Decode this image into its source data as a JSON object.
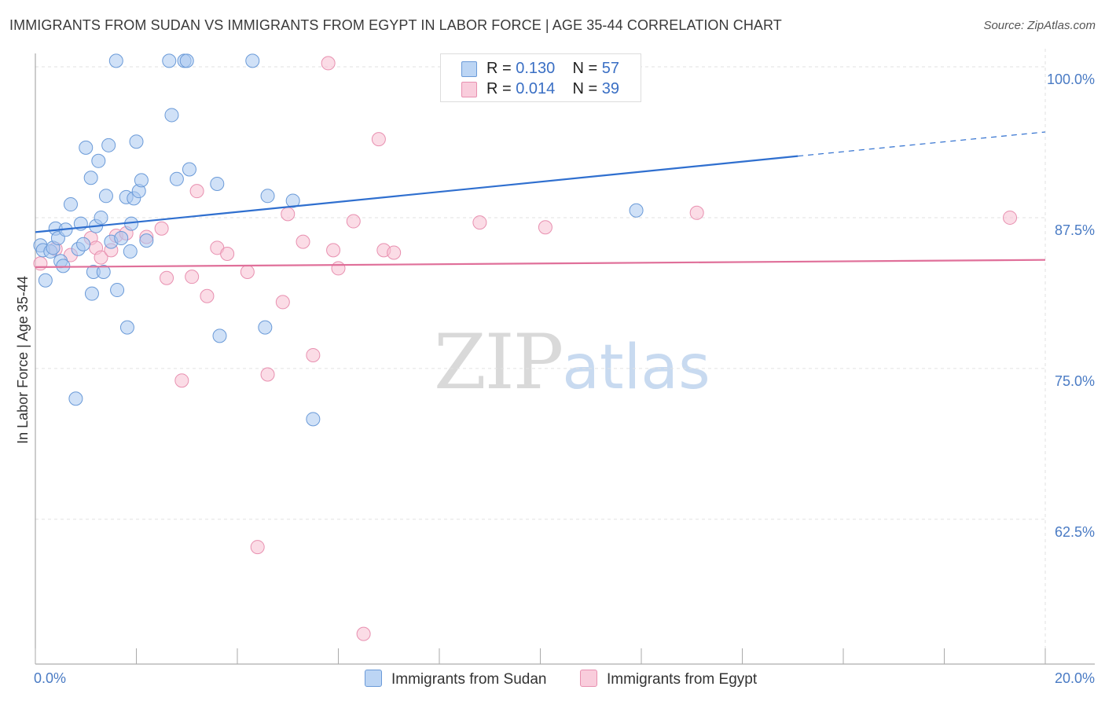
{
  "title": "IMMIGRANTS FROM SUDAN VS IMMIGRANTS FROM EGYPT IN LABOR FORCE | AGE 35-44 CORRELATION CHART",
  "source": "Source: ZipAtlas.com",
  "watermark": {
    "zip": "ZIP",
    "atlas": "atlas"
  },
  "legend": {
    "sudan": {
      "r_label": "R = ",
      "r_value": "0.130",
      "n_label": "N = ",
      "n_value": "57"
    },
    "egypt": {
      "r_label": "R = ",
      "r_value": "0.014",
      "n_label": "N = ",
      "n_value": "39"
    }
  },
  "colors": {
    "sudan_fill": "#a9c8f0",
    "sudan_stroke": "#6a9ad8",
    "sudan_line": "#2f6fcf",
    "egypt_fill": "#f7bfd2",
    "egypt_stroke": "#e890b0",
    "egypt_line": "#e0709a",
    "tick_text": "#4a7bc4",
    "grid": "#e2e2e2"
  },
  "chart_data": {
    "type": "scatter",
    "title": "IMMIGRANTS FROM SUDAN VS IMMIGRANTS FROM EGYPT IN LABOR FORCE | AGE 35-44 CORRELATION CHART",
    "xlabel": "",
    "ylabel": "In Labor Force | Age 35-44",
    "xlim": [
      0,
      20
    ],
    "ylim": [
      50.5,
      101.5
    ],
    "x_tick_labels": [
      {
        "value": 0,
        "label": "0.0%"
      },
      {
        "value": 20,
        "label": "20.0%"
      }
    ],
    "x_minor_ticks": [
      0,
      2,
      4,
      6,
      8,
      10,
      12,
      14,
      16,
      18,
      20
    ],
    "y_ticks": [
      {
        "value": 100,
        "label": "100.0%"
      },
      {
        "value": 87.5,
        "label": "87.5%"
      },
      {
        "value": 75,
        "label": "75.0%"
      },
      {
        "value": 62.5,
        "label": "62.5%"
      }
    ],
    "series": [
      {
        "name": "Immigrants from Sudan",
        "points": [
          [
            0.1,
            85.2
          ],
          [
            0.15,
            84.8
          ],
          [
            0.2,
            82.3
          ],
          [
            0.3,
            84.7
          ],
          [
            0.35,
            85.0
          ],
          [
            0.4,
            86.6
          ],
          [
            0.45,
            85.8
          ],
          [
            0.5,
            83.9
          ],
          [
            0.55,
            83.5
          ],
          [
            0.6,
            86.5
          ],
          [
            0.7,
            88.6
          ],
          [
            0.8,
            72.5
          ],
          [
            0.85,
            84.9
          ],
          [
            0.9,
            87.0
          ],
          [
            0.95,
            85.3
          ],
          [
            1.0,
            93.3
          ],
          [
            1.1,
            90.8
          ],
          [
            1.12,
            81.2
          ],
          [
            1.15,
            83.0
          ],
          [
            1.2,
            86.8
          ],
          [
            1.25,
            92.2
          ],
          [
            1.3,
            87.5
          ],
          [
            1.35,
            83.0
          ],
          [
            1.4,
            89.3
          ],
          [
            1.45,
            93.5
          ],
          [
            1.5,
            85.5
          ],
          [
            1.6,
            100.5
          ],
          [
            1.62,
            81.5
          ],
          [
            1.7,
            85.8
          ],
          [
            1.8,
            89.2
          ],
          [
            1.82,
            78.4
          ],
          [
            1.88,
            84.7
          ],
          [
            1.9,
            87.0
          ],
          [
            1.95,
            89.1
          ],
          [
            2.0,
            93.8
          ],
          [
            2.05,
            89.7
          ],
          [
            2.1,
            90.6
          ],
          [
            2.2,
            85.6
          ],
          [
            2.65,
            100.5
          ],
          [
            2.7,
            96.0
          ],
          [
            2.8,
            90.7
          ],
          [
            2.95,
            100.5
          ],
          [
            3.0,
            100.5
          ],
          [
            3.05,
            91.5
          ],
          [
            3.6,
            90.3
          ],
          [
            3.65,
            77.7
          ],
          [
            4.3,
            100.5
          ],
          [
            4.55,
            78.4
          ],
          [
            4.6,
            89.3
          ],
          [
            5.1,
            88.9
          ],
          [
            5.5,
            70.8
          ],
          [
            11.9,
            88.1
          ]
        ]
      },
      {
        "name": "Immigrants from Egypt",
        "points": [
          [
            0.1,
            83.7
          ],
          [
            0.4,
            84.9
          ],
          [
            0.7,
            84.4
          ],
          [
            1.1,
            85.8
          ],
          [
            1.2,
            85.0
          ],
          [
            1.3,
            84.2
          ],
          [
            1.5,
            84.8
          ],
          [
            1.6,
            86.0
          ],
          [
            1.8,
            86.2
          ],
          [
            2.2,
            85.9
          ],
          [
            2.5,
            86.6
          ],
          [
            2.6,
            82.5
          ],
          [
            2.9,
            74.0
          ],
          [
            3.1,
            82.6
          ],
          [
            3.2,
            89.7
          ],
          [
            3.4,
            81.0
          ],
          [
            3.6,
            85.0
          ],
          [
            3.8,
            84.5
          ],
          [
            4.2,
            83.0
          ],
          [
            4.4,
            60.2
          ],
          [
            4.6,
            74.5
          ],
          [
            4.9,
            80.5
          ],
          [
            5.0,
            87.8
          ],
          [
            5.3,
            85.5
          ],
          [
            5.5,
            76.1
          ],
          [
            5.8,
            100.3
          ],
          [
            5.9,
            84.8
          ],
          [
            6.0,
            83.3
          ],
          [
            6.3,
            87.2
          ],
          [
            6.5,
            53.0
          ],
          [
            6.8,
            94.0
          ],
          [
            6.9,
            84.8
          ],
          [
            7.1,
            84.6
          ],
          [
            8.8,
            87.1
          ],
          [
            10.1,
            86.7
          ],
          [
            13.1,
            87.9
          ],
          [
            19.3,
            87.5
          ]
        ]
      }
    ],
    "trend_lines": [
      {
        "name": "Immigrants from Sudan",
        "solid": [
          [
            0,
            86.3
          ],
          [
            15.1,
            92.6
          ]
        ],
        "dashed": [
          [
            15.1,
            92.6
          ],
          [
            20,
            94.6
          ]
        ]
      },
      {
        "name": "Immigrants from Egypt",
        "solid": [
          [
            0,
            83.4
          ],
          [
            20,
            84.0
          ]
        ]
      }
    ],
    "legend": [
      "Immigrants from Sudan",
      "Immigrants from Egypt"
    ]
  }
}
